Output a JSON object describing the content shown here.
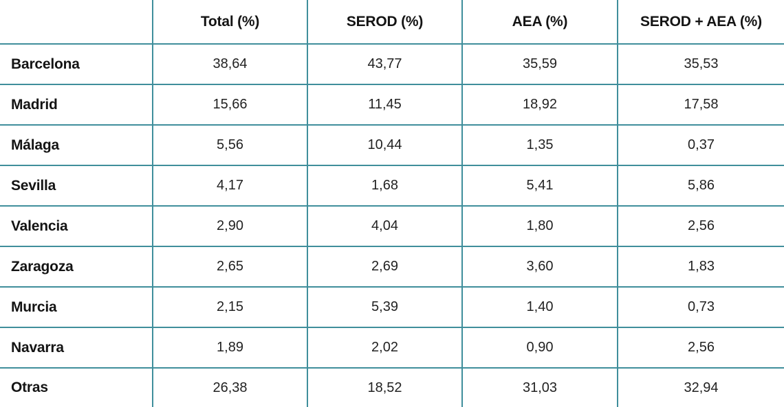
{
  "colors": {
    "border_teal": "#3f8e9b",
    "text": "#141414",
    "background": "#ffffff"
  },
  "table": {
    "columns": [
      "",
      "Total (%)",
      "SEROD (%)",
      "AEA (%)",
      "SEROD + AEA (%)"
    ],
    "rows": [
      {
        "label": "Barcelona",
        "values": [
          "38,64",
          "43,77",
          "35,59",
          "35,53"
        ]
      },
      {
        "label": "Madrid",
        "values": [
          "15,66",
          "11,45",
          "18,92",
          "17,58"
        ]
      },
      {
        "label": "Málaga",
        "values": [
          "5,56",
          "10,44",
          "1,35",
          "0,37"
        ]
      },
      {
        "label": "Sevilla",
        "values": [
          "4,17",
          "1,68",
          "5,41",
          "5,86"
        ]
      },
      {
        "label": "Valencia",
        "values": [
          "2,90",
          "4,04",
          "1,80",
          "2,56"
        ]
      },
      {
        "label": "Zaragoza",
        "values": [
          "2,65",
          "2,69",
          "3,60",
          "1,83"
        ]
      },
      {
        "label": "Murcia",
        "values": [
          "2,15",
          "5,39",
          "1,40",
          "0,73"
        ]
      },
      {
        "label": "Navarra",
        "values": [
          "1,89",
          "2,02",
          "0,90",
          "2,56"
        ]
      },
      {
        "label": "Otras",
        "values": [
          "26,38",
          "18,52",
          "31,03",
          "32,94"
        ]
      }
    ]
  },
  "chart_data": {
    "type": "table",
    "title": "",
    "columns": [
      "",
      "Total (%)",
      "SEROD (%)",
      "AEA (%)",
      "SEROD + AEA (%)"
    ],
    "rows": [
      [
        "Barcelona",
        38.64,
        43.77,
        35.59,
        35.53
      ],
      [
        "Madrid",
        15.66,
        11.45,
        18.92,
        17.58
      ],
      [
        "Málaga",
        5.56,
        10.44,
        1.35,
        0.37
      ],
      [
        "Sevilla",
        4.17,
        1.68,
        5.41,
        5.86
      ],
      [
        "Valencia",
        2.9,
        4.04,
        1.8,
        2.56
      ],
      [
        "Zaragoza",
        2.65,
        2.69,
        3.6,
        1.83
      ],
      [
        "Murcia",
        2.15,
        5.39,
        1.4,
        0.73
      ],
      [
        "Navarra",
        1.89,
        2.02,
        0.9,
        2.56
      ],
      [
        "Otras",
        26.38,
        18.52,
        31.03,
        32.94
      ]
    ],
    "decimal_separator": ",",
    "notes": "Percent distribution table with teal grid borders, bold header row and bold row labels; no outer border"
  }
}
